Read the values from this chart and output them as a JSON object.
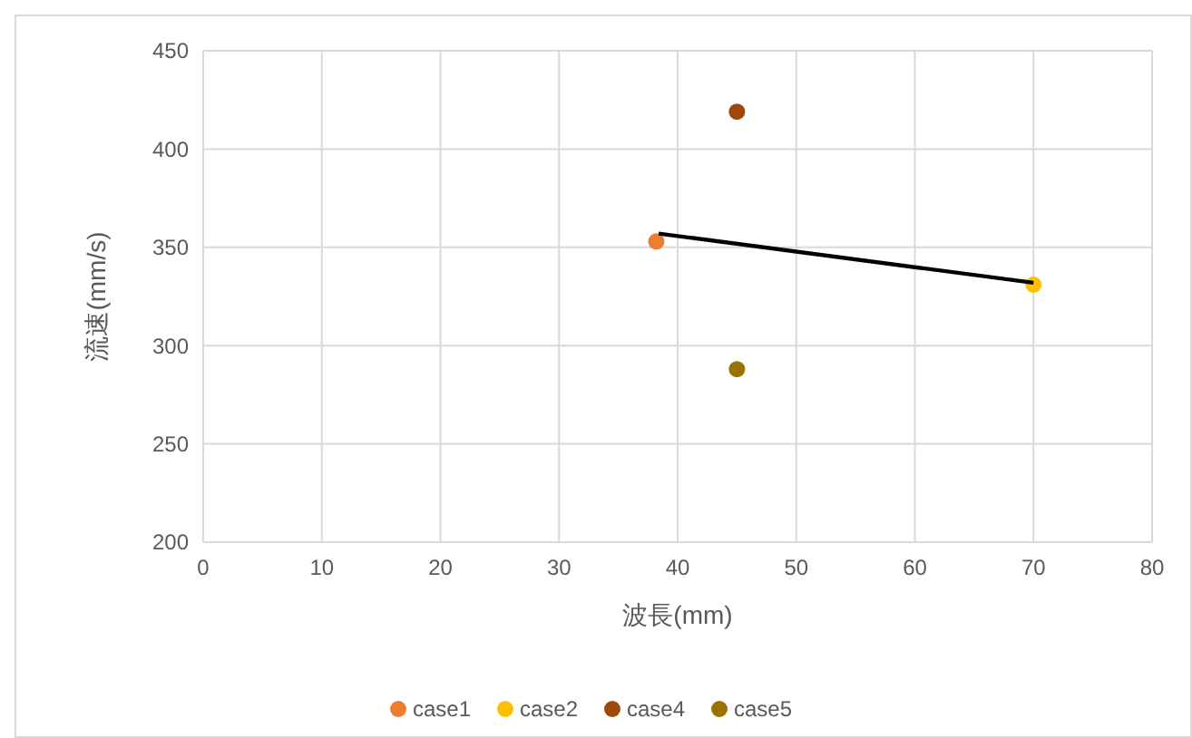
{
  "chart_data": {
    "type": "scatter",
    "xlabel": "波長(mm)",
    "ylabel": "流速(mm/s)",
    "xlim": [
      0,
      80
    ],
    "xticks": [
      0,
      10,
      20,
      30,
      40,
      50,
      60,
      70,
      80
    ],
    "ylim": [
      200,
      450
    ],
    "yticks": [
      200,
      250,
      300,
      350,
      400,
      450
    ],
    "grid": true,
    "legend": "bottom",
    "marker": "circle",
    "series": [
      {
        "name": "case1",
        "color": "#ed7d31",
        "x": [
          38.2
        ],
        "values": [
          353
        ]
      },
      {
        "name": "case2",
        "color": "#ffc000",
        "x": [
          70
        ],
        "values": [
          331
        ]
      },
      {
        "name": "case4",
        "color": "#9e480e",
        "x": [
          45
        ],
        "values": [
          419
        ]
      },
      {
        "name": "case5",
        "color": "#997300",
        "x": [
          45
        ],
        "values": [
          288
        ]
      },
      {
        "type": "line",
        "color": "#000000",
        "x": [
          38.4,
          70
        ],
        "values": [
          357,
          332
        ],
        "line_style": "solid",
        "marker": "none"
      }
    ]
  }
}
